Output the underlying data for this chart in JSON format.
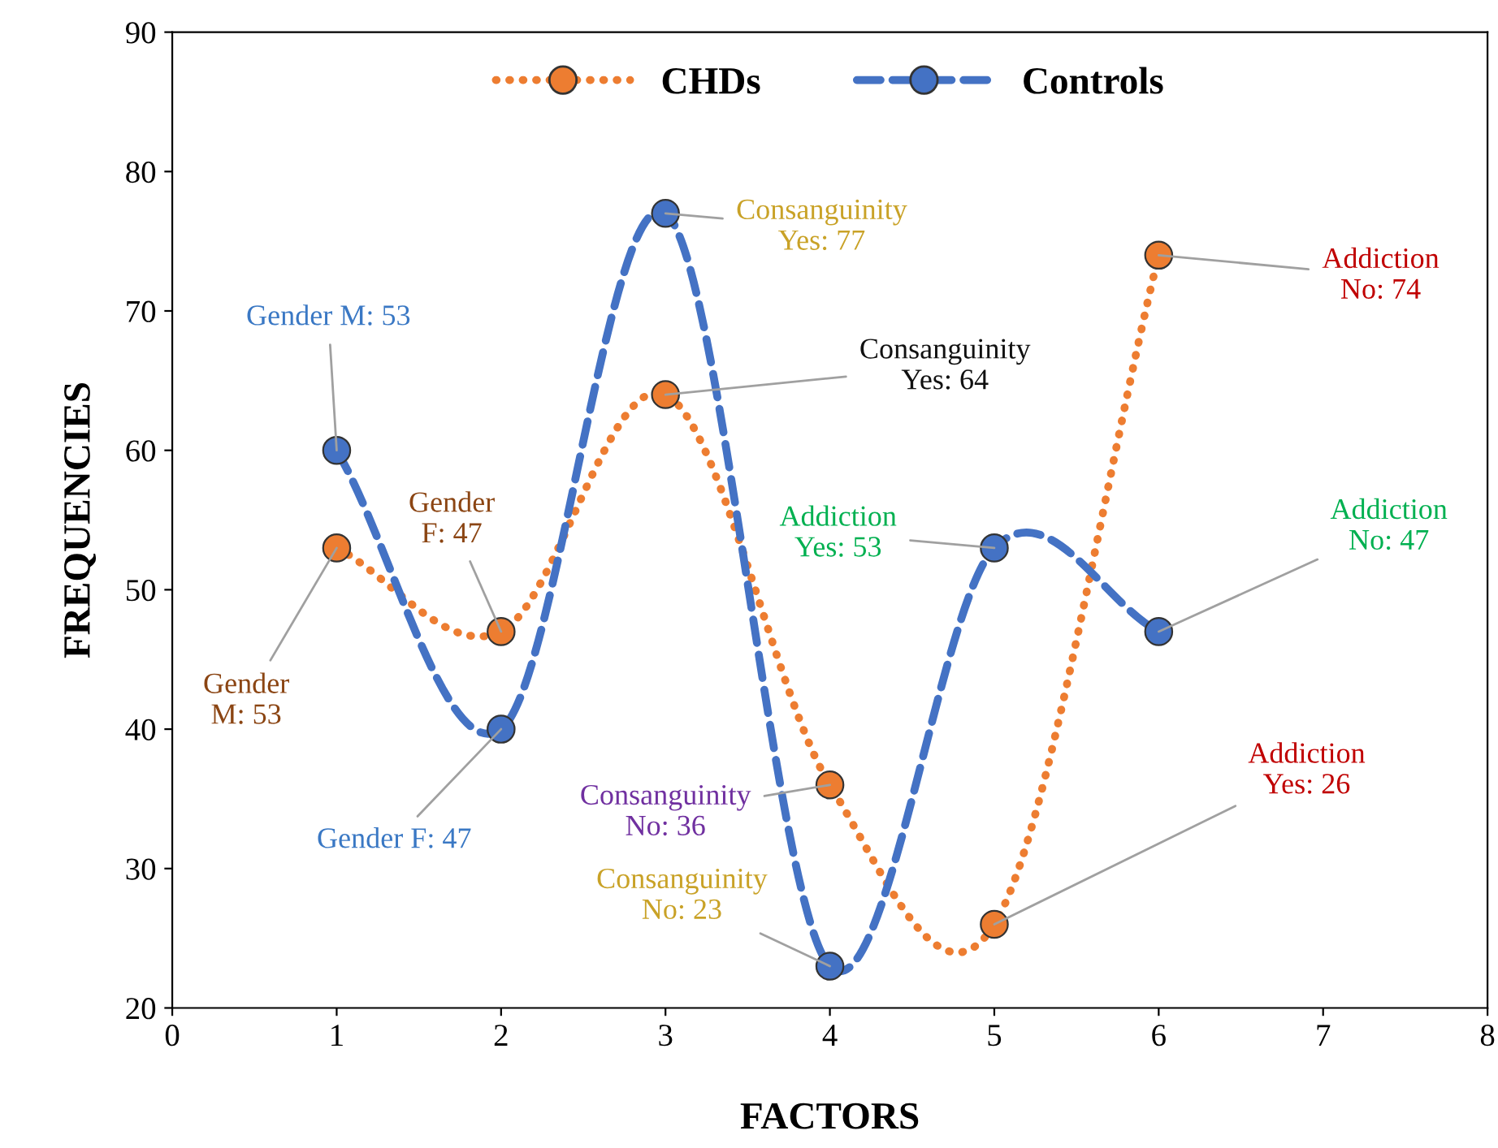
{
  "chart_data": {
    "type": "line",
    "xlabel": "FACTORS",
    "ylabel": "FREQUENCIES",
    "x": [
      1,
      2,
      3,
      4,
      5,
      6
    ],
    "series": [
      {
        "name": "CHDs",
        "color": "#ed7d31",
        "values": [
          53,
          47,
          64,
          36,
          26,
          74
        ],
        "line_style": "dotted"
      },
      {
        "name": "Controls",
        "color": "#4472c4",
        "values": [
          60,
          40,
          77,
          23,
          53,
          47
        ],
        "line_style": "dashed"
      }
    ],
    "marker": "circle",
    "legend": "top",
    "grid": false,
    "xlim": [
      0,
      8
    ],
    "xticks": [
      0,
      1,
      2,
      3,
      4,
      5,
      6,
      7,
      8
    ],
    "ylim": [
      20,
      90
    ],
    "yticks": [
      20,
      30,
      40,
      50,
      60,
      70,
      80,
      90
    ],
    "annotations": [
      {
        "text": "Gender\nM: 53",
        "x": 1,
        "y": 53
      },
      {
        "text": "Gender M: 53",
        "x": 1,
        "y": 60
      },
      {
        "text": "Gender\nF: 47",
        "x": 2,
        "y": 47
      },
      {
        "text": "Gender F: 47",
        "x": 2,
        "y": 40
      },
      {
        "text": "Consanguinity\nYes: 77",
        "x": 3,
        "y": 77
      },
      {
        "text": "Consanguinity\nYes: 64",
        "x": 3,
        "y": 64
      },
      {
        "text": "Consanguinity\nNo: 36",
        "x": 4,
        "y": 36
      },
      {
        "text": "Consanguinity\nNo: 23",
        "x": 4,
        "y": 23
      },
      {
        "text": "Addiction\nYes: 53",
        "x": 5,
        "y": 53
      },
      {
        "text": "Addiction\nNo: 47",
        "x": 6,
        "y": 47
      },
      {
        "text": "Addiction\nYes: 26",
        "x": 5,
        "y": 26
      },
      {
        "text": "Addiction\nNo: 74",
        "x": 6,
        "y": 74
      }
    ]
  }
}
